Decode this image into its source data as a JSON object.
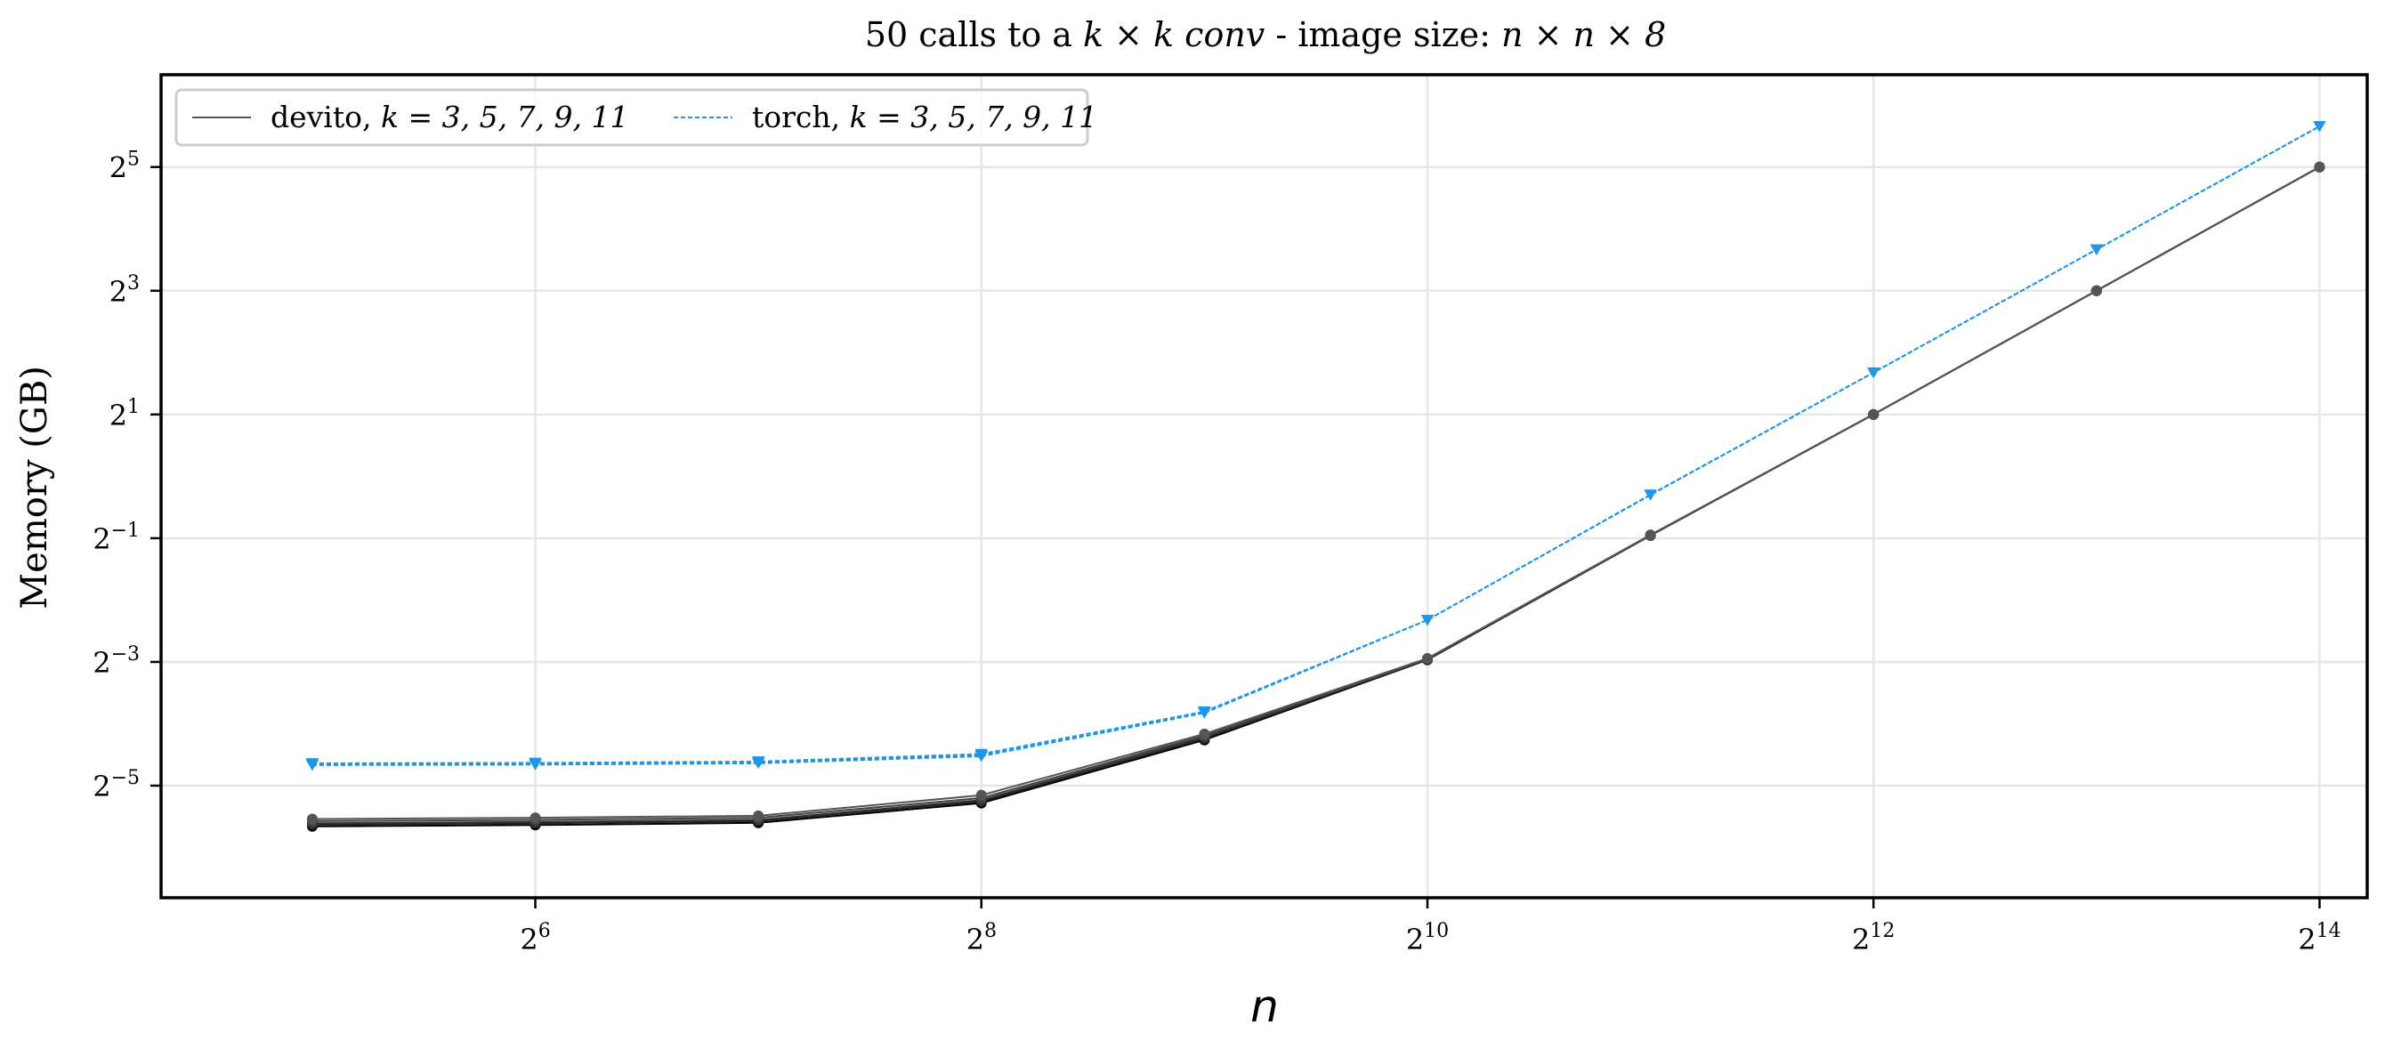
{
  "chart_data": {
    "type": "line",
    "title": {
      "prefix": "50 calls to a ",
      "conv_math": "k × k conv",
      "middle": " - image size: ",
      "size_math": "n × n × 8"
    },
    "xlabel": "n",
    "ylabel": "Memory (GB)",
    "x_scale": "log2",
    "y_scale": "log2",
    "xlim": [
      20,
      19000
    ],
    "ylim": [
      0.0089,
      90
    ],
    "x_ticks": [
      {
        "value": 64,
        "base": "2",
        "exp": "6"
      },
      {
        "value": 256,
        "base": "2",
        "exp": "8"
      },
      {
        "value": 1024,
        "base": "2",
        "exp": "10"
      },
      {
        "value": 4096,
        "base": "2",
        "exp": "12"
      },
      {
        "value": 16384,
        "base": "2",
        "exp": "14"
      }
    ],
    "y_ticks": [
      {
        "value": 0.03125,
        "base": "2",
        "exp": "−5"
      },
      {
        "value": 0.125,
        "base": "2",
        "exp": "−3"
      },
      {
        "value": 0.5,
        "base": "2",
        "exp": "−1"
      },
      {
        "value": 2,
        "base": "2",
        "exp": "1"
      },
      {
        "value": 8,
        "base": "2",
        "exp": "3"
      },
      {
        "value": 32,
        "base": "2",
        "exp": "5"
      }
    ],
    "grid": true,
    "legend_position": "top-left",
    "legend": [
      {
        "name": "devito",
        "k_text": "k = 3, 5, 7, 9, 11",
        "color": "#555555",
        "style": "solid"
      },
      {
        "name": "torch",
        "k_text": "k = 3, 5, 7, 9, 11",
        "color": "#1f96e8",
        "style": "dashed"
      }
    ],
    "x": [
      32,
      64,
      128,
      256,
      512,
      1024,
      2048,
      4096,
      8192,
      16384
    ],
    "series": [
      {
        "group": "devito",
        "k": 3,
        "color": "#000000",
        "marker": "circle",
        "values": [
          0.0198,
          0.0201,
          0.0206,
          0.0257,
          0.0521,
          0.128,
          0.515,
          2.0,
          8.0,
          32.0
        ]
      },
      {
        "group": "devito",
        "k": 5,
        "color": "#222222",
        "marker": "circle",
        "values": [
          0.0202,
          0.0205,
          0.021,
          0.0262,
          0.053,
          0.1285,
          0.516,
          2.0,
          8.0,
          32.0
        ]
      },
      {
        "group": "devito",
        "k": 7,
        "color": "#333333",
        "marker": "circle",
        "values": [
          0.0205,
          0.0208,
          0.0213,
          0.0266,
          0.0537,
          0.129,
          0.517,
          2.0,
          8.0,
          32.0
        ]
      },
      {
        "group": "devito",
        "k": 9,
        "color": "#444444",
        "marker": "circle",
        "values": [
          0.021,
          0.0213,
          0.0218,
          0.0272,
          0.0547,
          0.1295,
          0.518,
          2.0,
          8.0,
          32.0
        ]
      },
      {
        "group": "devito",
        "k": 11,
        "color": "#555555",
        "marker": "circle",
        "values": [
          0.0215,
          0.0218,
          0.0223,
          0.0281,
          0.0558,
          0.13,
          0.519,
          2.0,
          8.0,
          32.0
        ]
      },
      {
        "group": "torch",
        "k": 3,
        "color": "#1f96e8",
        "marker": "triangle-down",
        "values": [
          0.0393,
          0.0395,
          0.0401,
          0.0434,
          0.0705,
          0.2,
          0.811,
          3.2,
          12.7,
          50.5
        ]
      },
      {
        "group": "torch",
        "k": 5,
        "color": "#1f96e8",
        "marker": "triangle-down",
        "values": [
          0.0395,
          0.0397,
          0.0403,
          0.0437,
          0.0708,
          0.2,
          0.812,
          3.2,
          12.7,
          50.5
        ]
      },
      {
        "group": "torch",
        "k": 7,
        "color": "#1f96e8",
        "marker": "triangle-down",
        "values": [
          0.0398,
          0.04,
          0.0406,
          0.044,
          0.0712,
          0.2,
          0.813,
          3.2,
          12.7,
          50.5
        ]
      },
      {
        "group": "torch",
        "k": 9,
        "color": "#1f96e8",
        "marker": "triangle-down",
        "values": [
          0.04,
          0.0402,
          0.0408,
          0.0443,
          0.0715,
          0.2,
          0.814,
          3.2,
          12.7,
          50.5
        ]
      },
      {
        "group": "torch",
        "k": 11,
        "color": "#1f96e8",
        "marker": "triangle-down",
        "values": [
          0.0402,
          0.0404,
          0.041,
          0.0446,
          0.0718,
          0.2,
          0.815,
          3.2,
          12.7,
          50.5
        ]
      }
    ]
  }
}
